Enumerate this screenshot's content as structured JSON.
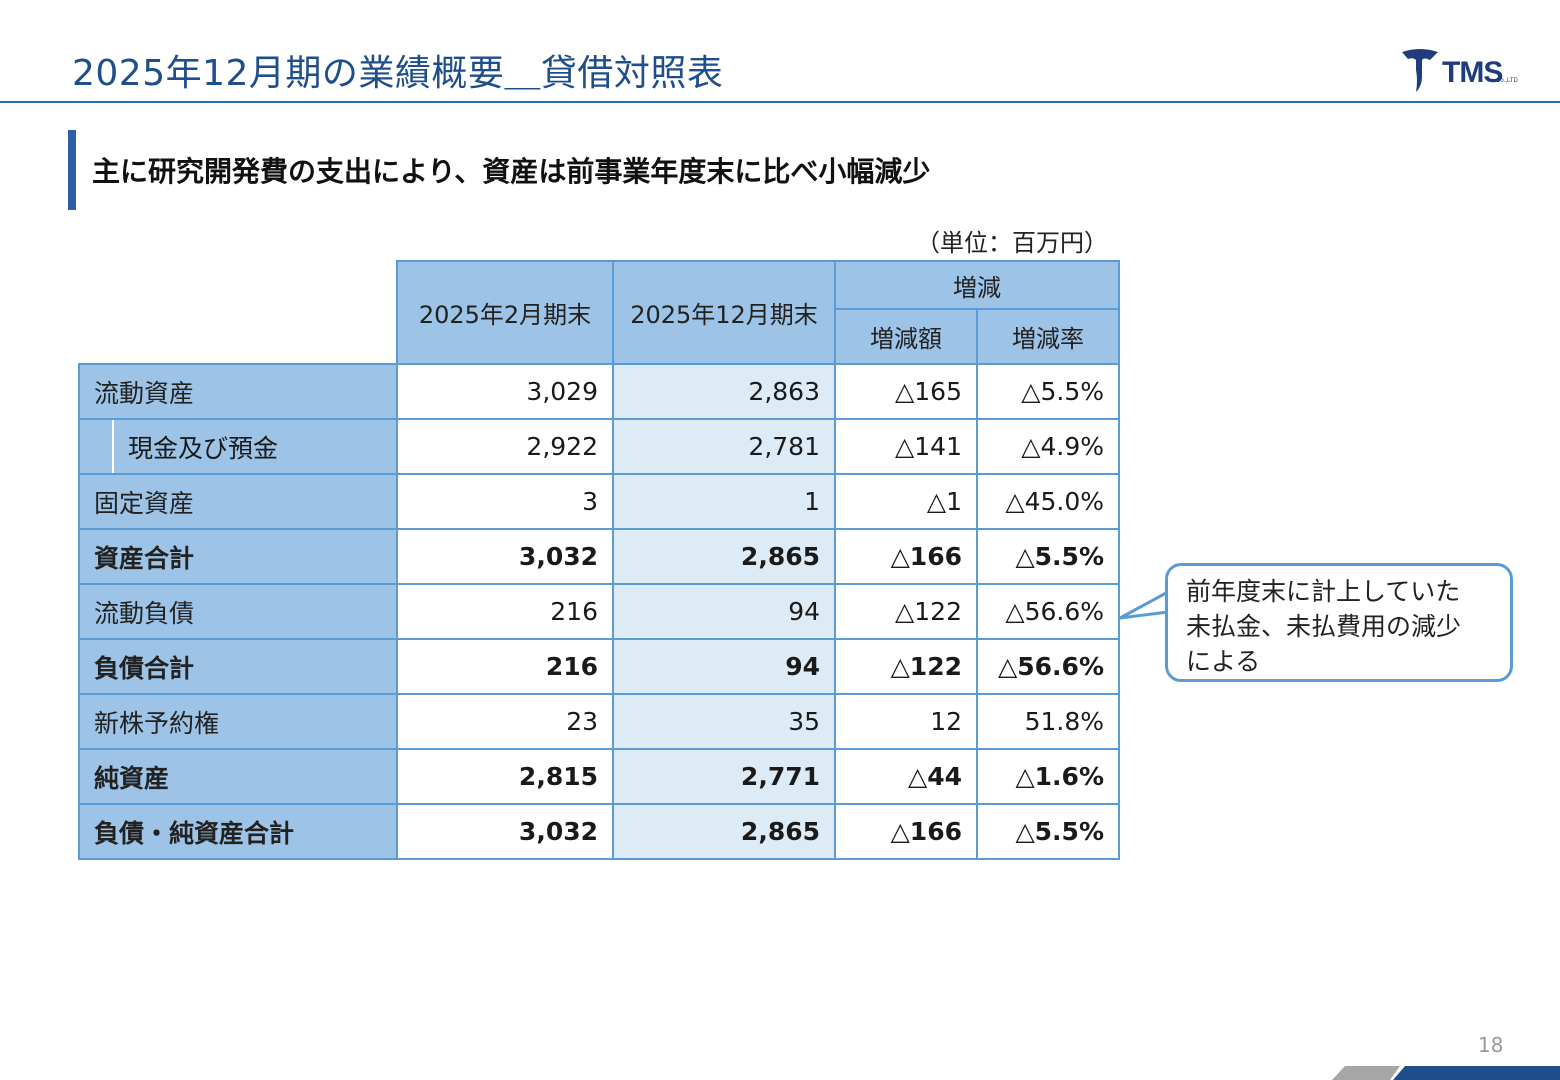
{
  "header": {
    "title": "2025年12月期の業績概要＿貸借対照表",
    "logo_text": "TMS",
    "logo_sub": "Co.,LTD"
  },
  "headline": "主に研究開発費の支出により、資産は前事業年度末に比べ小幅減少",
  "unit_note": "（単位：百万円）",
  "table": {
    "headers": {
      "col1": "2025年2月期末",
      "col2": "2025年12月期末",
      "change_group": "増減",
      "change_amount": "増減額",
      "change_rate": "増減率"
    },
    "rows": [
      {
        "label": "流動資産",
        "v1": "3,029",
        "v2": "2,863",
        "diff": "△165",
        "rate": "△5.5%",
        "bold": false,
        "indent": false
      },
      {
        "label": "現金及び預金",
        "v1": "2,922",
        "v2": "2,781",
        "diff": "△141",
        "rate": "△4.9%",
        "bold": false,
        "indent": true
      },
      {
        "label": "固定資産",
        "v1": "3",
        "v2": "1",
        "diff": "△1",
        "rate": "△45.0%",
        "bold": false,
        "indent": false
      },
      {
        "label": "資産合計",
        "v1": "3,032",
        "v2": "2,865",
        "diff": "△166",
        "rate": "△5.5%",
        "bold": true,
        "indent": false
      },
      {
        "label": "流動負債",
        "v1": "216",
        "v2": "94",
        "diff": "△122",
        "rate": "△56.6%",
        "bold": false,
        "indent": false
      },
      {
        "label": "負債合計",
        "v1": "216",
        "v2": "94",
        "diff": "△122",
        "rate": "△56.6%",
        "bold": true,
        "indent": false
      },
      {
        "label": "新株予約権",
        "v1": "23",
        "v2": "35",
        "diff": "12",
        "rate": "51.8%",
        "bold": false,
        "indent": false
      },
      {
        "label": "純資産",
        "v1": "2,815",
        "v2": "2,771",
        "diff": "△44",
        "rate": "△1.6%",
        "bold": true,
        "indent": false
      },
      {
        "label": "負債・純資産合計",
        "v1": "3,032",
        "v2": "2,865",
        "diff": "△166",
        "rate": "△5.5%",
        "bold": true,
        "indent": false
      }
    ]
  },
  "callout": {
    "lines": [
      "前年度末に計上していた",
      "未払金、未払費用の減少",
      "による"
    ]
  },
  "page_number": "18",
  "colors": {
    "title": "#1f4e8c",
    "header_fill": "#9dc3e6",
    "shade_fill": "#ddebf7",
    "border": "#5b9bd5",
    "footer_dark": "#1f4e8c",
    "footer_gray": "#a6a6a6"
  }
}
